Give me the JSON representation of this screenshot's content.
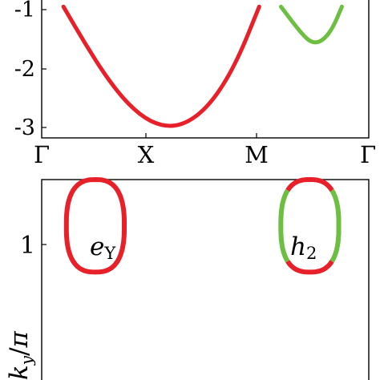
{
  "chart_data": [
    {
      "type": "line",
      "title": "",
      "xlabel": "",
      "ylabel": "",
      "x_ticks": [
        "Γ",
        "X",
        "M",
        "Γ"
      ],
      "y_ticks": [
        "-1",
        "-2",
        "-3"
      ],
      "ylim": [
        -3.1,
        -0.95
      ],
      "series": [
        {
          "color": "#e8202a",
          "x": [
            0.2,
            0.4,
            0.6,
            0.8,
            1.0,
            1.2,
            1.4,
            1.6,
            1.8,
            2.0
          ],
          "y": [
            -0.95,
            -1.58,
            -2.16,
            -2.62,
            -2.91,
            -3.0,
            -2.86,
            -2.49,
            -1.86,
            -0.95
          ]
        },
        {
          "color": "#6cbf40",
          "x": [
            2.2,
            2.29,
            2.37,
            2.45,
            2.52,
            2.6,
            2.68,
            2.76
          ],
          "y": [
            -0.95,
            -1.17,
            -1.36,
            -1.52,
            -1.57,
            -1.5,
            -1.3,
            -0.95
          ]
        }
      ]
    },
    {
      "type": "scatter",
      "title": "",
      "ylabel": "k_y/π",
      "y_ticks": [
        "1"
      ],
      "annotations": [
        {
          "label": "e",
          "subscript": "Y"
        },
        {
          "label": "h",
          "subscript": "2"
        }
      ],
      "contours": [
        {
          "name_ref": "e_Y",
          "center": [
            -1,
            1
          ],
          "radius": 0.3,
          "colors": [
            "#e8202a"
          ]
        },
        {
          "name_ref": "h_2",
          "center": [
            1,
            1
          ],
          "radius": 0.3,
          "colors": [
            "#e8202a",
            "#6cbf40"
          ]
        }
      ],
      "xlim": [
        -1.5,
        1.55
      ],
      "ylim": [
        0.0,
        1.3
      ]
    }
  ]
}
